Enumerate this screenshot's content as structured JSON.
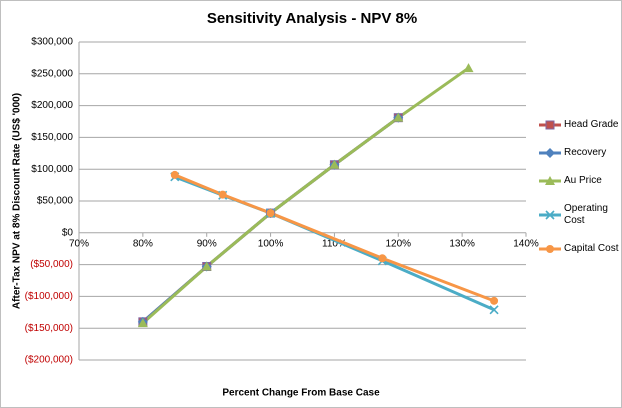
{
  "chart_data": {
    "type": "line",
    "title": "Sensitivity Analysis - NPV 8%",
    "x_label": "Percent Change  From Base Case",
    "y_label": "After-Tax NPV at 8% Discount Rate (US$ '000)",
    "xlim": [
      70,
      140
    ],
    "xticks": [
      {
        "value": 70,
        "label": "70%"
      },
      {
        "value": 80,
        "label": "80%"
      },
      {
        "value": 90,
        "label": "90%"
      },
      {
        "value": 100,
        "label": "100%"
      },
      {
        "value": 110,
        "label": "110%"
      },
      {
        "value": 120,
        "label": "120%"
      },
      {
        "value": 130,
        "label": "130%"
      },
      {
        "value": 140,
        "label": "140%"
      }
    ],
    "ylim": [
      -200000,
      300000
    ],
    "yticks": [
      {
        "value": -200000,
        "label": "($200,000)"
      },
      {
        "value": -150000,
        "label": "($150,000)"
      },
      {
        "value": -100000,
        "label": "($100,000)"
      },
      {
        "value": -50000,
        "label": "($50,000)"
      },
      {
        "value": 0,
        "label": "$0"
      },
      {
        "value": 50000,
        "label": "$50,000"
      },
      {
        "value": 100000,
        "label": "$100,000"
      },
      {
        "value": 150000,
        "label": "$150,000"
      },
      {
        "value": 200000,
        "label": "$200,000"
      },
      {
        "value": 250000,
        "label": "$250,000"
      },
      {
        "value": 300000,
        "label": "$300,000"
      }
    ],
    "grid": true,
    "negative_tick_color": "#c00000",
    "legend": "right",
    "series": [
      {
        "name": "Head Grade",
        "color": "#c0504d",
        "marker": "square",
        "x": [
          80,
          90,
          100,
          110,
          120
        ],
        "values": [
          -140000,
          -53000,
          31000,
          107000,
          181000
        ]
      },
      {
        "name": "Recovery",
        "color": "#4f81bd",
        "marker": "diamond",
        "x": [
          80,
          90,
          100,
          110,
          120
        ],
        "values": [
          -140000,
          -53000,
          31000,
          107000,
          181000
        ]
      },
      {
        "name": "Au Price",
        "color": "#9bbb59",
        "marker": "triangle",
        "x": [
          80,
          90,
          100,
          110,
          120,
          131
        ],
        "values": [
          -142000,
          -53000,
          31000,
          107000,
          181000,
          259000
        ]
      },
      {
        "name": "Operating Cost",
        "color": "#4bacc6",
        "marker": "x",
        "x": [
          85,
          92.5,
          100,
          117.5,
          135
        ],
        "values": [
          88000,
          59000,
          31000,
          -44000,
          -121000
        ]
      },
      {
        "name": "Capital Cost",
        "color": "#f79646",
        "marker": "circle",
        "x": [
          85,
          92.5,
          100,
          117.5,
          135
        ],
        "values": [
          91000,
          60000,
          31000,
          -40000,
          -107000
        ]
      }
    ]
  }
}
